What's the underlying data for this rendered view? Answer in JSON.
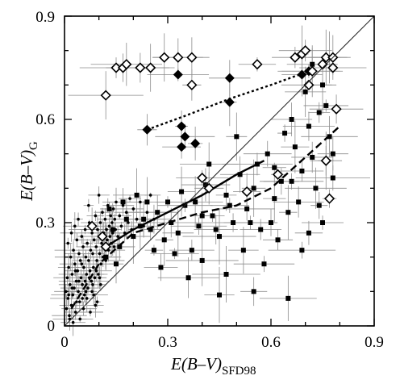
{
  "chart_data": {
    "type": "scatter",
    "title": "",
    "xlabel": {
      "main": "E(B–V)",
      "sub": "SFD98"
    },
    "ylabel": {
      "main": "E(B–V)",
      "sub": "G"
    },
    "xlim": [
      0,
      0.9
    ],
    "ylim": [
      0,
      0.9
    ],
    "xticks": [
      "0",
      "0.3",
      "0.6",
      "0.9"
    ],
    "yticks": [
      "0",
      "0.3",
      "0.6",
      "0.9"
    ],
    "grid": false,
    "legend": "none",
    "reference_line": {
      "from": [
        0,
        0
      ],
      "to": [
        0.9,
        0.9
      ]
    },
    "series": [
      {
        "marker": "filled-square",
        "points": [
          [
            0.23,
            0.31
          ],
          [
            0.25,
            0.28
          ],
          [
            0.27,
            0.33
          ],
          [
            0.29,
            0.25
          ],
          [
            0.31,
            0.3
          ],
          [
            0.33,
            0.27
          ],
          [
            0.35,
            0.35
          ],
          [
            0.37,
            0.22
          ],
          [
            0.39,
            0.29
          ],
          [
            0.41,
            0.41
          ],
          [
            0.43,
            0.32
          ],
          [
            0.45,
            0.26
          ],
          [
            0.47,
            0.38
          ],
          [
            0.49,
            0.3
          ],
          [
            0.51,
            0.44
          ],
          [
            0.53,
            0.34
          ],
          [
            0.55,
            0.4
          ],
          [
            0.57,
            0.28
          ],
          [
            0.59,
            0.5
          ],
          [
            0.61,
            0.37
          ],
          [
            0.63,
            0.42
          ],
          [
            0.65,
            0.33
          ],
          [
            0.67,
            0.52
          ],
          [
            0.69,
            0.45
          ],
          [
            0.71,
            0.58
          ],
          [
            0.73,
            0.4
          ],
          [
            0.74,
            0.62
          ],
          [
            0.75,
            0.3
          ],
          [
            0.76,
            0.48
          ],
          [
            0.77,
            0.55
          ],
          [
            0.78,
            0.43
          ],
          [
            0.66,
            0.6
          ],
          [
            0.7,
            0.68
          ],
          [
            0.72,
            0.49
          ],
          [
            0.62,
            0.25
          ],
          [
            0.58,
            0.18
          ],
          [
            0.52,
            0.22
          ],
          [
            0.47,
            0.15
          ],
          [
            0.4,
            0.19
          ],
          [
            0.36,
            0.14
          ],
          [
            0.32,
            0.21
          ],
          [
            0.28,
            0.17
          ],
          [
            0.55,
            0.1
          ],
          [
            0.65,
            0.08
          ],
          [
            0.45,
            0.09
          ],
          [
            0.6,
            0.3
          ],
          [
            0.68,
            0.36
          ],
          [
            0.75,
            0.7
          ],
          [
            0.77,
            0.78
          ],
          [
            0.72,
            0.76
          ],
          [
            0.5,
            0.55
          ],
          [
            0.56,
            0.47
          ],
          [
            0.64,
            0.56
          ],
          [
            0.42,
            0.47
          ],
          [
            0.38,
            0.36
          ],
          [
            0.34,
            0.39
          ],
          [
            0.3,
            0.36
          ],
          [
            0.26,
            0.22
          ],
          [
            0.24,
            0.36
          ],
          [
            0.69,
            0.22
          ],
          [
            0.76,
            0.64
          ],
          [
            0.78,
            0.5
          ],
          [
            0.74,
            0.35
          ],
          [
            0.71,
            0.27
          ],
          [
            0.66,
            0.42
          ],
          [
            0.61,
            0.46
          ],
          [
            0.54,
            0.3
          ],
          [
            0.48,
            0.35
          ],
          [
            0.44,
            0.28
          ],
          [
            0.4,
            0.32
          ],
          [
            0.22,
            0.29
          ],
          [
            0.2,
            0.26
          ],
          [
            0.18,
            0.31
          ],
          [
            0.16,
            0.23
          ],
          [
            0.14,
            0.28
          ],
          [
            0.13,
            0.34
          ],
          [
            0.12,
            0.2
          ],
          [
            0.15,
            0.18
          ],
          [
            0.17,
            0.36
          ],
          [
            0.21,
            0.38
          ]
        ]
      },
      {
        "marker": "small-dot",
        "points": [
          [
            0.004,
            0.1
          ],
          [
            0.006,
            0.05
          ],
          [
            0.008,
            0.14
          ],
          [
            0.01,
            0.08
          ],
          [
            0.012,
            0.17
          ],
          [
            0.014,
            0.03
          ],
          [
            0.016,
            0.12
          ],
          [
            0.018,
            0.2
          ],
          [
            0.02,
            0.06
          ],
          [
            0.022,
            0.15
          ],
          [
            0.024,
            0.09
          ],
          [
            0.026,
            0.22
          ],
          [
            0.028,
            0.11
          ],
          [
            0.03,
            0.18
          ],
          [
            0.032,
            0.04
          ],
          [
            0.034,
            0.13
          ],
          [
            0.036,
            0.25
          ],
          [
            0.038,
            0.16
          ],
          [
            0.04,
            0.1
          ],
          [
            0.042,
            0.21
          ],
          [
            0.044,
            0.07
          ],
          [
            0.046,
            0.19
          ],
          [
            0.048,
            0.14
          ],
          [
            0.05,
            0.26
          ],
          [
            0.052,
            0.12
          ],
          [
            0.054,
            0.23
          ],
          [
            0.056,
            0.17
          ],
          [
            0.058,
            0.09
          ],
          [
            0.06,
            0.28
          ],
          [
            0.062,
            0.2
          ],
          [
            0.064,
            0.15
          ],
          [
            0.066,
            0.24
          ],
          [
            0.068,
            0.11
          ],
          [
            0.07,
            0.19
          ],
          [
            0.072,
            0.3
          ],
          [
            0.074,
            0.16
          ],
          [
            0.076,
            0.22
          ],
          [
            0.078,
            0.13
          ],
          [
            0.08,
            0.27
          ],
          [
            0.082,
            0.21
          ],
          [
            0.084,
            0.17
          ],
          [
            0.086,
            0.25
          ],
          [
            0.088,
            0.14
          ],
          [
            0.09,
            0.32
          ],
          [
            0.092,
            0.23
          ],
          [
            0.094,
            0.19
          ],
          [
            0.096,
            0.28
          ],
          [
            0.098,
            0.15
          ],
          [
            0.1,
            0.26
          ],
          [
            0.102,
            0.21
          ],
          [
            0.104,
            0.3
          ],
          [
            0.106,
            0.18
          ],
          [
            0.108,
            0.24
          ],
          [
            0.11,
            0.33
          ],
          [
            0.112,
            0.2
          ],
          [
            0.114,
            0.27
          ],
          [
            0.116,
            0.23
          ],
          [
            0.118,
            0.31
          ],
          [
            0.12,
            0.19
          ],
          [
            0.122,
            0.28
          ],
          [
            0.124,
            0.25
          ],
          [
            0.126,
            0.35
          ],
          [
            0.128,
            0.22
          ],
          [
            0.13,
            0.29
          ],
          [
            0.132,
            0.26
          ],
          [
            0.134,
            0.32
          ],
          [
            0.136,
            0.24
          ],
          [
            0.138,
            0.3
          ],
          [
            0.14,
            0.27
          ],
          [
            0.142,
            0.34
          ],
          [
            0.144,
            0.23
          ],
          [
            0.146,
            0.31
          ],
          [
            0.148,
            0.28
          ],
          [
            0.15,
            0.36
          ],
          [
            0.155,
            0.26
          ],
          [
            0.16,
            0.32
          ],
          [
            0.165,
            0.29
          ],
          [
            0.17,
            0.35
          ],
          [
            0.175,
            0.27
          ],
          [
            0.18,
            0.33
          ],
          [
            0.185,
            0.3
          ],
          [
            0.19,
            0.37
          ],
          [
            0.195,
            0.28
          ],
          [
            0.2,
            0.34
          ],
          [
            0.21,
            0.31
          ],
          [
            0.22,
            0.36
          ],
          [
            0.23,
            0.29
          ],
          [
            0.24,
            0.33
          ],
          [
            0.25,
            0.38
          ],
          [
            0.26,
            0.31
          ],
          [
            0.015,
            0.02
          ],
          [
            0.025,
            0.01
          ],
          [
            0.035,
            0.07
          ],
          [
            0.045,
            0.02
          ],
          [
            0.055,
            0.05
          ],
          [
            0.065,
            0.08
          ],
          [
            0.075,
            0.04
          ],
          [
            0.085,
            0.09
          ],
          [
            0.095,
            0.07
          ],
          [
            0.105,
            0.12
          ],
          [
            0.01,
            0.24
          ],
          [
            0.02,
            0.27
          ],
          [
            0.03,
            0.29
          ],
          [
            0.04,
            0.31
          ],
          [
            0.05,
            0.18
          ],
          [
            0.06,
            0.13
          ],
          [
            0.07,
            0.35
          ],
          [
            0.08,
            0.1
          ],
          [
            0.09,
            0.06
          ],
          [
            0.1,
            0.38
          ],
          [
            0.012,
            0.09
          ],
          [
            0.022,
            0.11
          ],
          [
            0.032,
            0.16
          ],
          [
            0.042,
            0.13
          ],
          [
            0.052,
            0.08
          ],
          [
            0.062,
            0.1
          ],
          [
            0.072,
            0.14
          ],
          [
            0.082,
            0.12
          ],
          [
            0.092,
            0.16
          ],
          [
            0.102,
            0.14
          ]
        ]
      },
      {
        "marker": "filled-diamond",
        "points": [
          [
            0.24,
            0.57
          ],
          [
            0.33,
            0.73
          ],
          [
            0.34,
            0.52
          ],
          [
            0.34,
            0.58
          ],
          [
            0.35,
            0.55
          ],
          [
            0.38,
            0.53
          ],
          [
            0.48,
            0.72
          ],
          [
            0.48,
            0.65
          ],
          [
            0.69,
            0.73
          ],
          [
            0.71,
            0.74
          ]
        ]
      },
      {
        "marker": "open-diamond",
        "points": [
          [
            0.12,
            0.67
          ],
          [
            0.15,
            0.75
          ],
          [
            0.17,
            0.75
          ],
          [
            0.18,
            0.76
          ],
          [
            0.22,
            0.75
          ],
          [
            0.25,
            0.75
          ],
          [
            0.29,
            0.78
          ],
          [
            0.33,
            0.78
          ],
          [
            0.37,
            0.78
          ],
          [
            0.37,
            0.7
          ],
          [
            0.56,
            0.76
          ],
          [
            0.67,
            0.78
          ],
          [
            0.69,
            0.79
          ],
          [
            0.7,
            0.8
          ],
          [
            0.76,
            0.78
          ],
          [
            0.78,
            0.78
          ],
          [
            0.79,
            0.63
          ],
          [
            0.78,
            0.75
          ],
          [
            0.75,
            0.76
          ],
          [
            0.72,
            0.74
          ],
          [
            0.71,
            0.7
          ],
          [
            0.77,
            0.37
          ],
          [
            0.76,
            0.48
          ],
          [
            0.62,
            0.44
          ],
          [
            0.53,
            0.39
          ],
          [
            0.4,
            0.43
          ],
          [
            0.42,
            0.4
          ],
          [
            0.11,
            0.26
          ],
          [
            0.08,
            0.29
          ],
          [
            0.12,
            0.23
          ]
        ]
      }
    ],
    "fit_curves": [
      {
        "style": "dotted",
        "points": [
          [
            0.24,
            0.57
          ],
          [
            0.35,
            0.61
          ],
          [
            0.48,
            0.66
          ],
          [
            0.6,
            0.7
          ],
          [
            0.71,
            0.74
          ]
        ]
      },
      {
        "style": "solid",
        "points": [
          [
            0.12,
            0.23
          ],
          [
            0.2,
            0.28
          ],
          [
            0.3,
            0.33
          ],
          [
            0.4,
            0.38
          ],
          [
            0.5,
            0.44
          ],
          [
            0.58,
            0.48
          ]
        ]
      },
      {
        "style": "dashed",
        "points": [
          [
            0.02,
            0.05
          ],
          [
            0.1,
            0.18
          ],
          [
            0.2,
            0.27
          ],
          [
            0.3,
            0.3
          ],
          [
            0.4,
            0.33
          ],
          [
            0.5,
            0.35
          ],
          [
            0.6,
            0.4
          ],
          [
            0.7,
            0.49
          ],
          [
            0.8,
            0.58
          ]
        ]
      }
    ]
  }
}
